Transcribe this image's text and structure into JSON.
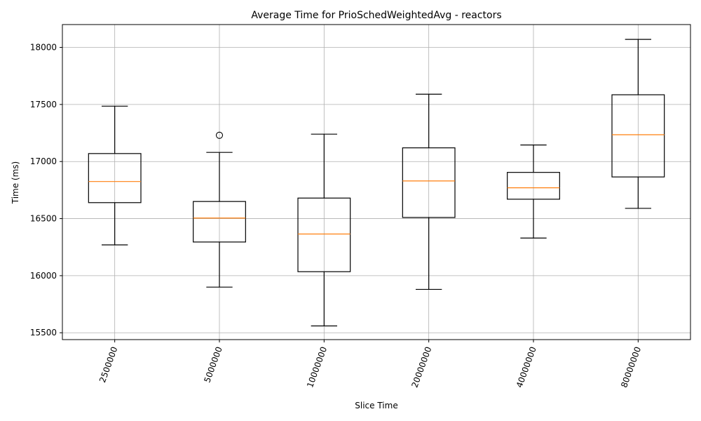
{
  "chart_data": {
    "type": "box",
    "title": "Average Time for PrioSchedWeightedAvg - reactors",
    "xlabel": "Slice Time",
    "ylabel": "Time (ms)",
    "categories": [
      "2500000",
      "5000000",
      "10000000",
      "20000000",
      "40000000",
      "80000000"
    ],
    "ylim": [
      15440,
      18200
    ],
    "yticks": [
      15500,
      16000,
      16500,
      17000,
      17500,
      18000
    ],
    "grid": true,
    "xtick_rotation_deg": 70,
    "boxes": [
      {
        "whisker_low": 16270,
        "q1": 16640,
        "median": 16825,
        "q3": 17070,
        "whisker_high": 17485,
        "outliers": []
      },
      {
        "whisker_low": 15900,
        "q1": 16295,
        "median": 16505,
        "q3": 16650,
        "whisker_high": 17080,
        "outliers": [
          17230
        ]
      },
      {
        "whisker_low": 15560,
        "q1": 16035,
        "median": 16365,
        "q3": 16680,
        "whisker_high": 17240,
        "outliers": []
      },
      {
        "whisker_low": 15880,
        "q1": 16510,
        "median": 16830,
        "q3": 17120,
        "whisker_high": 17590,
        "outliers": []
      },
      {
        "whisker_low": 16330,
        "q1": 16670,
        "median": 16770,
        "q3": 16905,
        "whisker_high": 17145,
        "outliers": []
      },
      {
        "whisker_low": 16590,
        "q1": 16865,
        "median": 17235,
        "q3": 17585,
        "whisker_high": 18070,
        "outliers": []
      }
    ],
    "colors": {
      "box": "#000000",
      "median": "#ff7f0e",
      "grid": "#b0b0b0",
      "axes": "#000000"
    }
  }
}
